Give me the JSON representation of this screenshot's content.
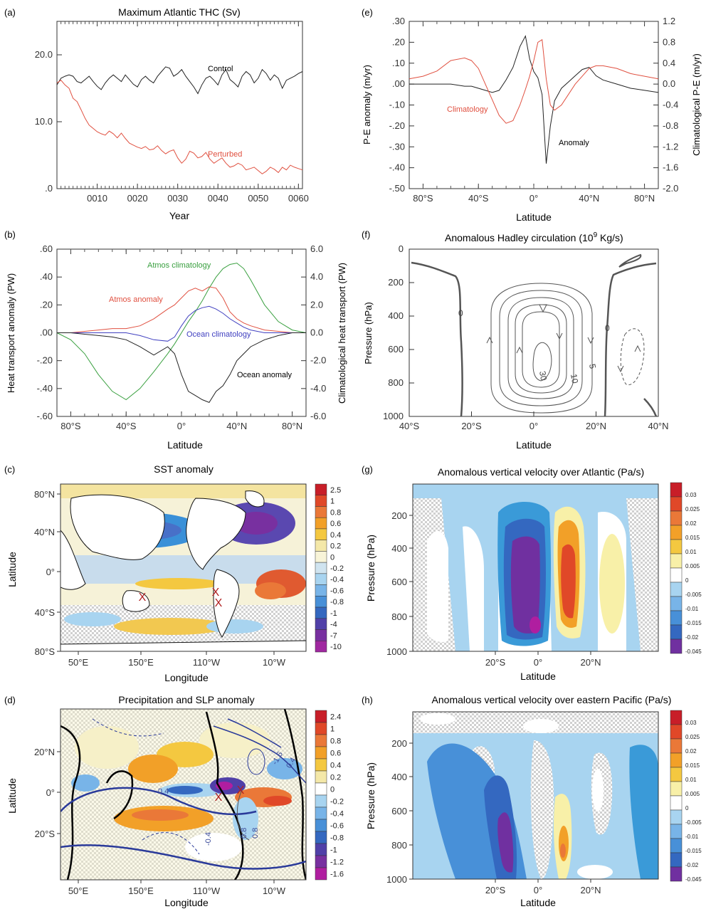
{
  "chart_data": [
    {
      "id": "a",
      "panel_label": "(a)",
      "type": "line",
      "title": "Maximum Atlantic THC (Sv)",
      "xlabel": "Year",
      "ylabel": "",
      "xlim": [
        0,
        61
      ],
      "ylim": [
        0,
        25
      ],
      "x_ticks": [
        10,
        20,
        30,
        40,
        50,
        60
      ],
      "x_tick_labels": [
        "0010",
        "0020",
        "0030",
        "0040",
        "0050",
        "0060"
      ],
      "y_ticks": [
        0,
        10,
        20
      ],
      "y_tick_labels": [
        ".0",
        "10.0",
        "20.0"
      ],
      "x": [
        0,
        1,
        2,
        3,
        4,
        5,
        6,
        7,
        8,
        9,
        10,
        11,
        12,
        13,
        14,
        15,
        16,
        17,
        18,
        19,
        20,
        21,
        22,
        23,
        24,
        25,
        26,
        27,
        28,
        29,
        30,
        31,
        32,
        33,
        34,
        35,
        36,
        37,
        38,
        39,
        40,
        41,
        42,
        43,
        44,
        45,
        46,
        47,
        48,
        49,
        50,
        51,
        52,
        53,
        54,
        55,
        56,
        57,
        58,
        59,
        60,
        61
      ],
      "series": [
        {
          "name": "Control",
          "color": "#222222",
          "values": [
            15.5,
            16.5,
            16.8,
            17.0,
            16.8,
            16.0,
            15.8,
            16.3,
            16.8,
            16.0,
            15.3,
            14.8,
            15.8,
            16.5,
            17.0,
            16.5,
            16.0,
            17.0,
            16.3,
            15.6,
            15.2,
            16.3,
            16.8,
            16.2,
            15.8,
            16.8,
            17.5,
            18.2,
            18.0,
            16.8,
            17.2,
            17.8,
            16.8,
            16.0,
            15.2,
            14.2,
            15.5,
            16.5,
            16.8,
            16.2,
            15.5,
            17.0,
            17.8,
            16.3,
            15.8,
            15.2,
            16.8,
            17.5,
            17.0,
            15.8,
            16.5,
            17.8,
            17.2,
            16.2,
            17.0,
            16.5,
            15.0,
            16.2,
            16.5,
            16.8,
            17.2,
            17.5
          ]
        },
        {
          "name": "Perturbed",
          "color": "#e05040",
          "values": [
            15.8,
            16.2,
            15.5,
            15.0,
            13.5,
            13.0,
            11.8,
            10.5,
            9.5,
            9.0,
            8.5,
            8.2,
            8.0,
            8.6,
            8.2,
            7.6,
            8.3,
            7.5,
            6.8,
            6.5,
            6.2,
            6.0,
            6.3,
            5.8,
            5.9,
            6.4,
            5.7,
            5.2,
            5.6,
            5.8,
            4.6,
            3.8,
            4.4,
            5.6,
            5.3,
            4.6,
            4.8,
            5.4,
            4.4,
            3.8,
            4.2,
            4.6,
            3.8,
            3.2,
            3.4,
            3.8,
            3.5,
            2.8,
            3.0,
            3.2,
            2.7,
            2.2,
            2.6,
            3.2,
            2.9,
            2.4,
            3.2,
            2.8,
            3.5,
            3.2,
            3.0,
            2.8
          ]
        }
      ]
    },
    {
      "id": "e",
      "panel_label": "(e)",
      "type": "line",
      "title": "",
      "xlabel": "Latitude",
      "ylabel": "P-E anomaly  (m/yr)",
      "ylabel_right": "Climatological P-E   (m/yr)",
      "xlim": [
        -90,
        90
      ],
      "ylim": [
        -0.5,
        0.3
      ],
      "ylim_right": [
        -2.0,
        1.2
      ],
      "x_ticks": [
        -80,
        -40,
        0,
        40,
        80
      ],
      "x_tick_labels": [
        "80°S",
        "40°S",
        "0°",
        "40°N",
        "80°N"
      ],
      "y_ticks": [
        -0.5,
        -0.4,
        -0.3,
        -0.2,
        -0.1,
        0.0,
        0.1,
        0.2,
        0.3
      ],
      "y_tick_labels": [
        "-.50",
        "-.40",
        "-.30",
        "-.20",
        "-.10",
        ".00",
        ".10",
        ".20",
        ".30"
      ],
      "y_ticks_right": [
        -2.0,
        -1.6,
        -1.2,
        -0.8,
        -0.4,
        0.0,
        0.4,
        0.8,
        1.2
      ],
      "y_tick_labels_right": [
        "-2.0",
        "-1.6",
        "-1.2",
        "-0.8",
        "-0.4",
        "0.0",
        "0.4",
        "0.8",
        "1.2"
      ],
      "x": [
        -90,
        -80,
        -70,
        -60,
        -50,
        -45,
        -40,
        -35,
        -30,
        -25,
        -20,
        -15,
        -10,
        -6,
        -3,
        0,
        3,
        6,
        9,
        12,
        15,
        20,
        25,
        30,
        35,
        40,
        45,
        50,
        60,
        70,
        80,
        90
      ],
      "series": [
        {
          "name": "Anomaly",
          "color": "#222222",
          "axis": "left",
          "values": [
            0.0,
            0.0,
            0.0,
            0.0,
            -0.01,
            -0.01,
            -0.02,
            -0.03,
            -0.04,
            -0.03,
            0.02,
            0.08,
            0.18,
            0.23,
            0.12,
            0.06,
            0.03,
            -0.05,
            -0.38,
            -0.2,
            -0.08,
            -0.02,
            0.01,
            0.04,
            0.07,
            0.08,
            0.04,
            0.02,
            0.0,
            -0.02,
            -0.03,
            -0.04
          ]
        },
        {
          "name": "Climatology",
          "color": "#e05040",
          "axis": "right",
          "values": [
            0.1,
            0.15,
            0.25,
            0.45,
            0.5,
            0.45,
            0.3,
            0.0,
            -0.3,
            -0.6,
            -0.75,
            -0.7,
            -0.4,
            -0.1,
            0.15,
            0.45,
            0.8,
            0.85,
            0.1,
            -0.4,
            -0.5,
            -0.4,
            -0.2,
            0.0,
            0.15,
            0.3,
            0.35,
            0.35,
            0.3,
            0.2,
            0.15,
            0.1
          ]
        }
      ]
    },
    {
      "id": "b",
      "panel_label": "(b)",
      "type": "line",
      "title": "",
      "xlabel": "Latitude",
      "ylabel": "Heat transport anomaly (PW)",
      "ylabel_right": "Climatological heat transport (PW)",
      "xlim": [
        -90,
        90
      ],
      "ylim": [
        -0.6,
        0.6
      ],
      "ylim_right": [
        -6.0,
        6.0
      ],
      "x_ticks": [
        -80,
        -40,
        0,
        40,
        80
      ],
      "x_tick_labels": [
        "80°S",
        "40°S",
        "0°",
        "40°N",
        "80°N"
      ],
      "y_ticks": [
        -0.6,
        -0.4,
        -0.2,
        0.0,
        0.2,
        0.4,
        0.6
      ],
      "y_tick_labels": [
        "-.60",
        "-.40",
        "-.20",
        ".00",
        ".20",
        ".40",
        ".60"
      ],
      "y_ticks_right": [
        -6,
        -4,
        -2,
        0,
        2,
        4,
        6
      ],
      "y_tick_labels_right": [
        "-6.0",
        "-4.0",
        "-2.0",
        "0.0",
        "2.0",
        "4.0",
        "6.0"
      ],
      "x": [
        -90,
        -80,
        -70,
        -60,
        -50,
        -40,
        -30,
        -20,
        -10,
        -5,
        0,
        5,
        10,
        15,
        20,
        25,
        30,
        35,
        40,
        45,
        50,
        60,
        70,
        80,
        90
      ],
      "series": [
        {
          "name": "Atmos climatology",
          "color": "#3aa040",
          "axis": "right",
          "values": [
            0.0,
            -0.5,
            -1.5,
            -3.0,
            -4.2,
            -4.8,
            -4.0,
            -2.8,
            -1.5,
            -0.8,
            0.0,
            0.8,
            1.5,
            2.3,
            3.2,
            4.0,
            4.6,
            4.9,
            5.0,
            4.6,
            3.8,
            2.0,
            0.8,
            0.2,
            0.0
          ]
        },
        {
          "name": "Atmos anomaly",
          "color": "#e05040",
          "axis": "left",
          "values": [
            0.0,
            0.0,
            0.01,
            0.02,
            0.03,
            0.03,
            0.05,
            0.1,
            0.17,
            0.2,
            0.25,
            0.3,
            0.32,
            0.3,
            0.33,
            0.32,
            0.25,
            0.15,
            0.1,
            0.07,
            0.05,
            0.02,
            0.01,
            0.0,
            0.0
          ]
        },
        {
          "name": "Ocean climatology",
          "color": "#4040c0",
          "axis": "right",
          "values": [
            0.0,
            0.0,
            0.0,
            0.0,
            0.0,
            0.0,
            -0.2,
            -0.5,
            -0.6,
            -0.3,
            0.5,
            1.2,
            1.6,
            1.8,
            1.9,
            1.7,
            1.4,
            1.0,
            0.7,
            0.4,
            0.2,
            0.0,
            0.0,
            0.0,
            0.0
          ]
        },
        {
          "name": "Ocean anomaly",
          "color": "#222222",
          "axis": "left",
          "values": [
            0.0,
            0.0,
            -0.01,
            -0.02,
            -0.03,
            -0.05,
            -0.1,
            -0.16,
            -0.1,
            -0.15,
            -0.3,
            -0.42,
            -0.45,
            -0.48,
            -0.5,
            -0.42,
            -0.38,
            -0.3,
            -0.2,
            -0.15,
            -0.1,
            -0.05,
            -0.02,
            0.0,
            0.0
          ]
        }
      ]
    },
    {
      "id": "f",
      "panel_label": "(f)",
      "type": "contour",
      "title": "Anomalous Hadley circulation (10^9 Kg/s)",
      "title_text": "Anomalous Hadley circulation (10",
      "title_sup": "9",
      "title_suffix": " Kg/s)",
      "xlabel": "Latitude",
      "ylabel": "Pressure (hPa)",
      "xlim": [
        -40,
        40
      ],
      "ylim": [
        1000,
        0
      ],
      "x_tick_labels": [
        "40°S",
        "20°S",
        "0°",
        "20°N",
        "40°N"
      ],
      "y_tick_labels": [
        "0",
        "200",
        "400",
        "600",
        "800",
        "1000"
      ],
      "contour_labels": [
        "0",
        "0",
        "30",
        "10",
        "5"
      ]
    },
    {
      "id": "c",
      "panel_label": "(c)",
      "type": "heatmap",
      "title": "SST anomaly",
      "xlabel": "Longitude",
      "ylabel": "Latitude",
      "x_tick_labels": [
        "50°E",
        "150°E",
        "110°W",
        "10°W"
      ],
      "y_tick_labels": [
        "80°N",
        "40°N",
        "0°",
        "40°S",
        "80°S"
      ],
      "colorbar_labels": [
        "2.5",
        "1",
        "0.8",
        "0.6",
        "0.4",
        "0.2",
        "0",
        "-0.2",
        "-0.4",
        "-0.6",
        "-0.8",
        "-1",
        "-4",
        "-7",
        "-10"
      ],
      "markers": "X"
    },
    {
      "id": "g",
      "panel_label": "(g)",
      "type": "heatmap",
      "title": "Anomalous vertical velocity over Atlantic (Pa/s)",
      "xlabel": "Latitude",
      "ylabel": "Pressure (hPa)",
      "x_tick_labels": [
        "20°S",
        "0°",
        "20°N"
      ],
      "y_tick_labels": [
        "200",
        "400",
        "600",
        "800",
        "1000"
      ],
      "colorbar_labels": [
        "0.03",
        "0.025",
        "0.02",
        "0.015",
        "0.01",
        "0.005",
        "0",
        "-0.005",
        "-0.01",
        "-0.015",
        "-0.02",
        "-0.045"
      ]
    },
    {
      "id": "d",
      "panel_label": "(d)",
      "type": "heatmap",
      "title": "Precipitation and SLP  anomaly",
      "xlabel": "Longitude",
      "ylabel": "Latitude",
      "x_tick_labels": [
        "50°E",
        "150°E",
        "110°W",
        "10°W"
      ],
      "y_tick_labels": [
        "20°N",
        "0°",
        "20°S"
      ],
      "colorbar_labels": [
        "2.4",
        "1",
        "0.8",
        "0.6",
        "0.4",
        "0.2",
        "0",
        "-0.2",
        "-0.4",
        "-0.6",
        "-0.8",
        "-1",
        "-1.2",
        "-1.6"
      ],
      "contour_labels": [
        "-1.6",
        "0.4",
        "0.4",
        "-0.4",
        "0.8",
        "0.8"
      ],
      "markers": "X"
    },
    {
      "id": "h",
      "panel_label": "(h)",
      "type": "heatmap",
      "title": "Anomalous vertical velocity over eastern Pacific (Pa/s)",
      "xlabel": "Latitude",
      "ylabel": "Pressure (hPa)",
      "x_tick_labels": [
        "20°S",
        "0°",
        "20°N"
      ],
      "y_tick_labels": [
        "200",
        "400",
        "600",
        "800",
        "1000"
      ],
      "colorbar_labels": [
        "0.03",
        "0.025",
        "0.02",
        "0.015",
        "0.01",
        "0.005",
        "0",
        "-0.005",
        "-0.01",
        "-0.015",
        "-0.02",
        "-0.045"
      ]
    }
  ],
  "colors": {
    "sst_scale": [
      "#c81e28",
      "#e04828",
      "#ea7838",
      "#f2a028",
      "#f4c840",
      "#f4e8a8",
      "#f8f4d8",
      "#d0e4f0",
      "#a8d4f0",
      "#78b4e8",
      "#4890d8",
      "#3468c0",
      "#5040a8",
      "#7830a0",
      "#a028a0"
    ],
    "precip_scale": [
      "#c81e28",
      "#e04828",
      "#ea7838",
      "#f2a028",
      "#f4c840",
      "#f4e8a8",
      "#ffffff",
      "#a8d4f0",
      "#78b4e8",
      "#4890d8",
      "#3468c0",
      "#5040a8",
      "#7830a0",
      "#b01ea0"
    ],
    "omega_scale": [
      "#c81e28",
      "#e04828",
      "#ea7838",
      "#f2a028",
      "#f4c840",
      "#f8f0a8",
      "#ffffff",
      "#a8d4f0",
      "#78b4e8",
      "#4890d8",
      "#3468c0",
      "#7030a0",
      "#b01ea0"
    ]
  }
}
